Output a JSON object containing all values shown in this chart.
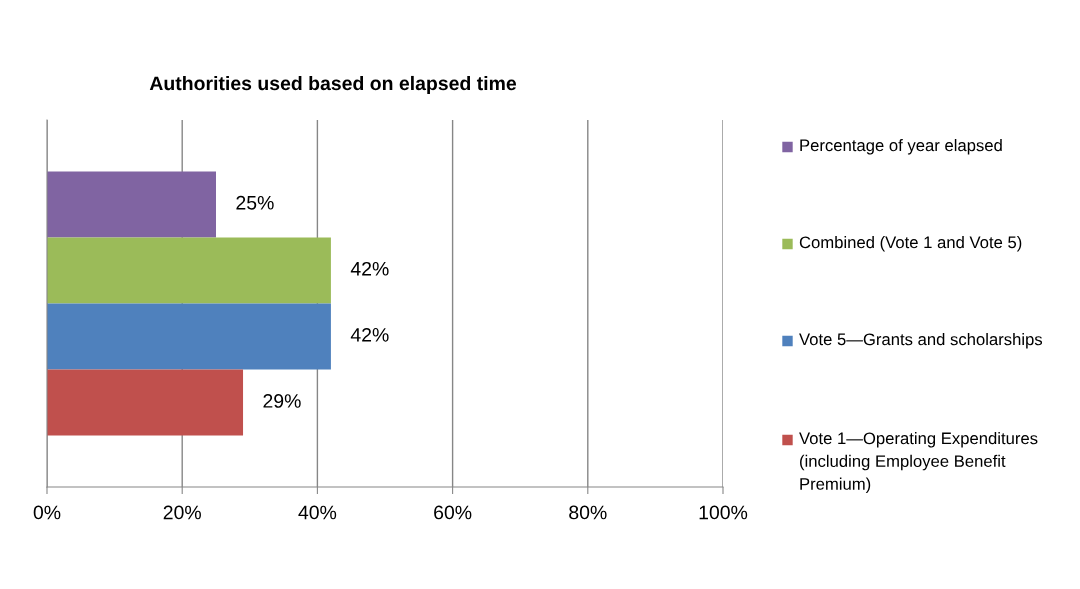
{
  "chart_data": {
    "type": "bar",
    "orientation": "horizontal",
    "title": "Authorities used based on elapsed time",
    "categories": [
      null
    ],
    "series": [
      {
        "name": "Percentage of year elapsed",
        "color": "#8064a2",
        "values": [
          25
        ],
        "value_labels": [
          "25%"
        ]
      },
      {
        "name": "Combined (Vote 1 and Vote 5)",
        "color": "#9bbb59",
        "values": [
          42
        ],
        "value_labels": [
          "42%"
        ]
      },
      {
        "name": "Vote 5—Grants and scholarships",
        "color": "#4f81bd",
        "values": [
          42
        ],
        "value_labels": [
          "42%"
        ]
      },
      {
        "name": "Vote 1—Operating Expenditures (including Employee Benefit Premium)",
        "color": "#c0504d",
        "values": [
          29
        ],
        "value_labels": [
          "29%"
        ]
      }
    ],
    "xlim": [
      0,
      100
    ],
    "xticks": [
      {
        "value": 0,
        "label": "0%"
      },
      {
        "value": 20,
        "label": "20%"
      },
      {
        "value": 40,
        "label": "40%"
      },
      {
        "value": 60,
        "label": "60%"
      },
      {
        "value": 80,
        "label": "80%"
      },
      {
        "value": 100,
        "label": "100%"
      }
    ],
    "grid": "x",
    "legend": "right"
  }
}
